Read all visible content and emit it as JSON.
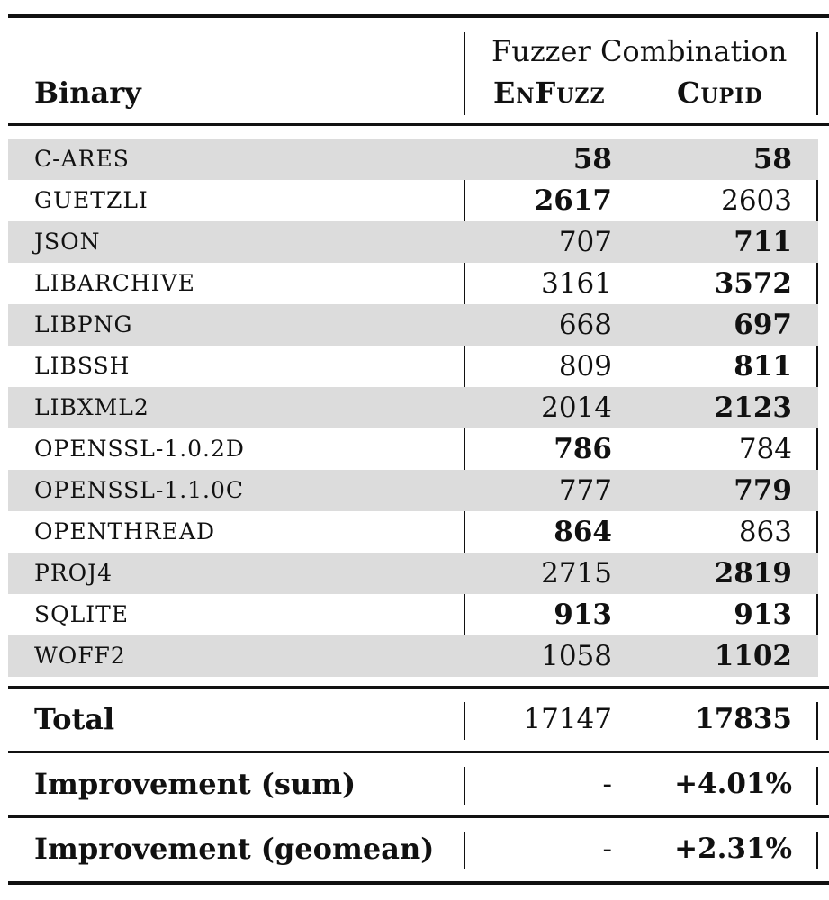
{
  "header": {
    "binary_label": "Binary",
    "group_label": "Fuzzer Combination",
    "col1": "EnFuzz",
    "col2": "Cupid"
  },
  "rows": [
    {
      "name": "C-ARES",
      "enfuzz": "58",
      "cupid": "58",
      "enfuzz_bold": true,
      "cupid_bold": true
    },
    {
      "name": "GUETZLI",
      "enfuzz": "2617",
      "cupid": "2603",
      "enfuzz_bold": true,
      "cupid_bold": false
    },
    {
      "name": "JSON",
      "enfuzz": "707",
      "cupid": "711",
      "enfuzz_bold": false,
      "cupid_bold": true
    },
    {
      "name": "LIBARCHIVE",
      "enfuzz": "3161",
      "cupid": "3572",
      "enfuzz_bold": false,
      "cupid_bold": true
    },
    {
      "name": "LIBPNG",
      "enfuzz": "668",
      "cupid": "697",
      "enfuzz_bold": false,
      "cupid_bold": true
    },
    {
      "name": "LIBSSH",
      "enfuzz": "809",
      "cupid": "811",
      "enfuzz_bold": false,
      "cupid_bold": true
    },
    {
      "name": "LIBXML2",
      "enfuzz": "2014",
      "cupid": "2123",
      "enfuzz_bold": false,
      "cupid_bold": true
    },
    {
      "name": "OPENSSL-1.0.2D",
      "enfuzz": "786",
      "cupid": "784",
      "enfuzz_bold": true,
      "cupid_bold": false
    },
    {
      "name": "OPENSSL-1.1.0C",
      "enfuzz": "777",
      "cupid": "779",
      "enfuzz_bold": false,
      "cupid_bold": true
    },
    {
      "name": "OPENTHREAD",
      "enfuzz": "864",
      "cupid": "863",
      "enfuzz_bold": true,
      "cupid_bold": false
    },
    {
      "name": "PROJ4",
      "enfuzz": "2715",
      "cupid": "2819",
      "enfuzz_bold": false,
      "cupid_bold": true
    },
    {
      "name": "SQLITE",
      "enfuzz": "913",
      "cupid": "913",
      "enfuzz_bold": true,
      "cupid_bold": true
    },
    {
      "name": "WOFF2",
      "enfuzz": "1058",
      "cupid": "1102",
      "enfuzz_bold": false,
      "cupid_bold": true
    }
  ],
  "summary": [
    {
      "label": "Total",
      "enfuzz": "17147",
      "cupid": "17835"
    },
    {
      "label": "Improvement (sum)",
      "enfuzz": "-",
      "cupid": "+4.01%"
    },
    {
      "label": "Improvement (geomean)",
      "enfuzz": "-",
      "cupid": "+2.31%"
    }
  ],
  "colors": {
    "shade": "#dcdcdc",
    "text": "#111111"
  }
}
